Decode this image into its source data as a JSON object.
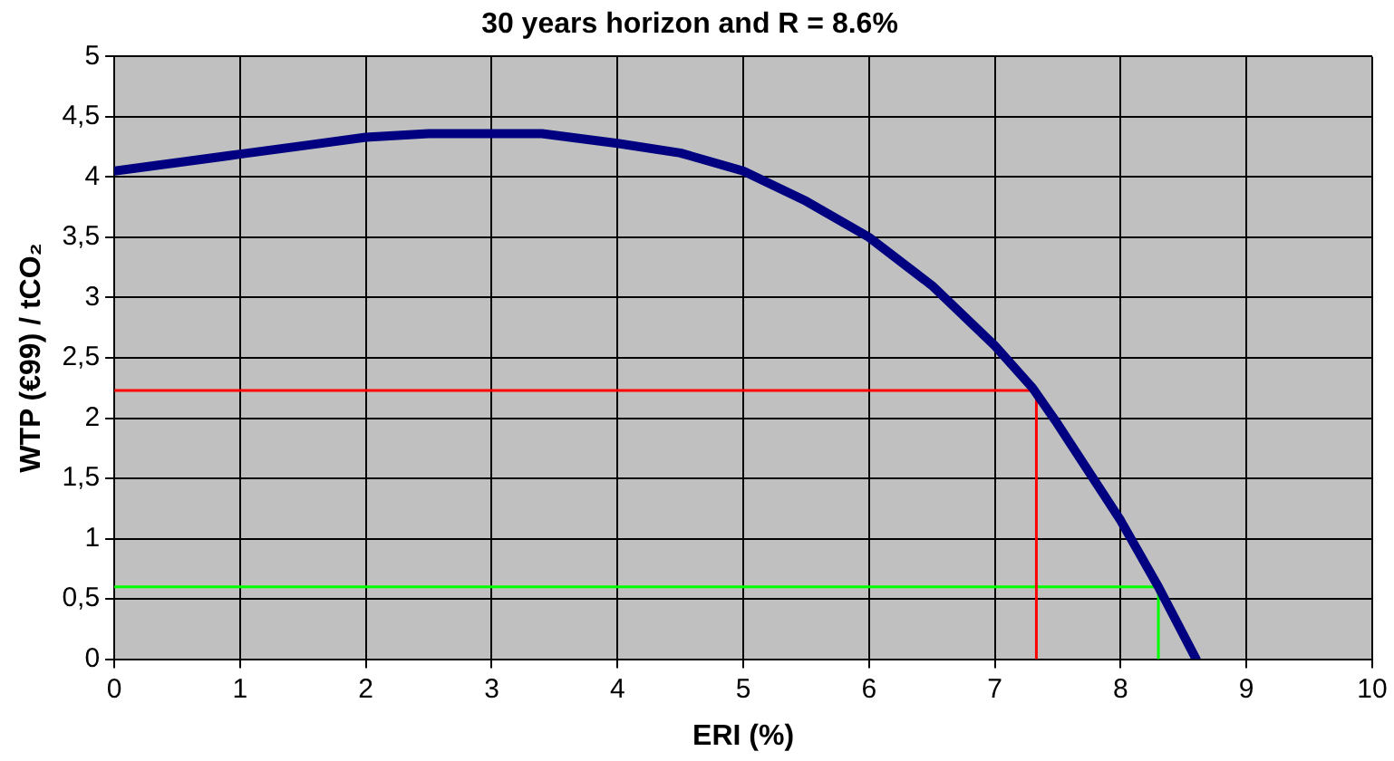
{
  "chart_data": {
    "type": "line",
    "title": "30 years horizon and R = 8.6%",
    "xlabel": "ERI (%)",
    "ylabel": "WTP (€99) / tCO₂",
    "xlim": [
      0,
      10
    ],
    "xticks": [
      0,
      1,
      2,
      3,
      4,
      5,
      6,
      7,
      8,
      9,
      10
    ],
    "ylim": [
      0,
      5
    ],
    "yticks": [
      0,
      {
        "value": 0.5,
        "label": "0,5"
      },
      1,
      {
        "value": 1.5,
        "label": "1,5"
      },
      2,
      {
        "value": 2.5,
        "label": "2,5"
      },
      3,
      {
        "value": 3.5,
        "label": "3,5"
      },
      4,
      {
        "value": 4.5,
        "label": "4,5"
      },
      5
    ],
    "grid": true,
    "legend": false,
    "marker": "none",
    "line_style": "solid",
    "series": [
      {
        "color": "#000080",
        "x": [
          0,
          0.5,
          1,
          1.5,
          2,
          2.5,
          3,
          3.4,
          4,
          4.5,
          5,
          5.5,
          6,
          6.5,
          7,
          7.3,
          7.5,
          8,
          8.3,
          8.6
        ],
        "values": [
          4.05,
          4.12,
          4.19,
          4.26,
          4.33,
          4.36,
          4.36,
          4.36,
          4.28,
          4.2,
          4.05,
          3.8,
          3.5,
          3.1,
          2.6,
          2.25,
          1.95,
          1.15,
          0.6,
          0
        ]
      },
      {
        "color": "#ff0000",
        "x": [
          0,
          7.33,
          7.33
        ],
        "values": [
          2.23,
          2.23,
          0
        ]
      },
      {
        "color": "#00ff00",
        "x": [
          0,
          8.3,
          8.3
        ],
        "values": [
          0.6,
          0.6,
          0
        ]
      }
    ]
  }
}
